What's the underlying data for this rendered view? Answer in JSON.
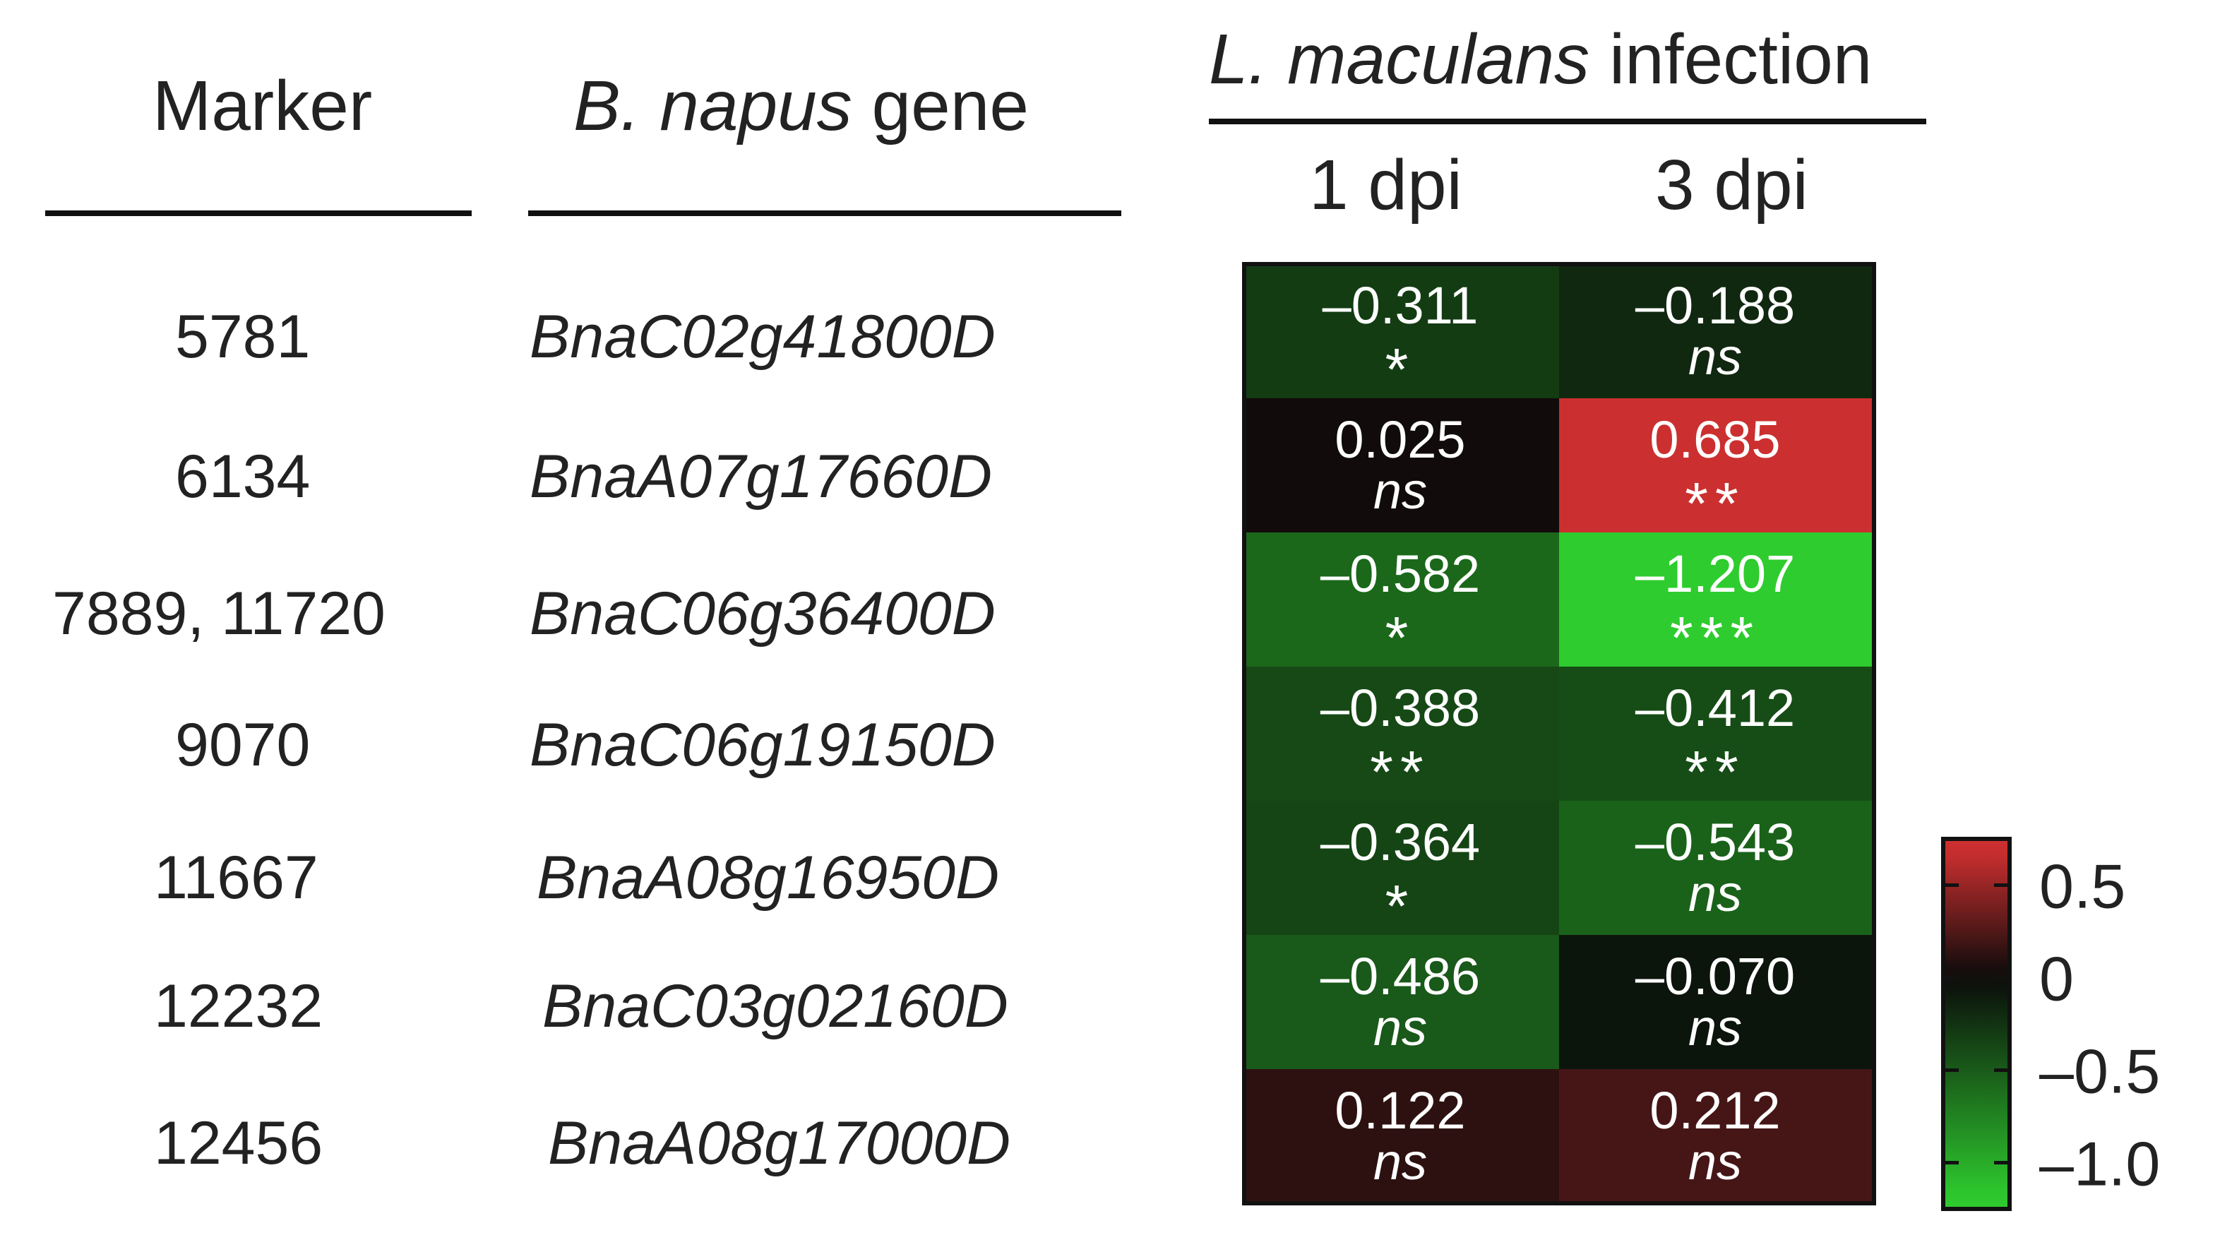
{
  "headers": {
    "marker": "Marker",
    "gene_italic": "B. napus",
    "gene_rest": " gene",
    "infection_italic": "L. maculans",
    "infection_rest": " infection"
  },
  "rows": [
    {
      "marker": "5781",
      "gene": "BnaC02g41800D"
    },
    {
      "marker": "6134",
      "gene": "BnaA07g17660D"
    },
    {
      "marker": "7889, 11720",
      "gene": "BnaC06g36400D"
    },
    {
      "marker": "9070",
      "gene": "BnaC06g19150D"
    },
    {
      "marker": "11667",
      "gene": "BnaA08g16950D"
    },
    {
      "marker": "12232",
      "gene": "BnaC03g02160D"
    },
    {
      "marker": "12456",
      "gene": "BnaA08g17000D"
    }
  ],
  "chart_data": {
    "type": "heatmap",
    "columns": [
      "1 dpi",
      "3 dpi"
    ],
    "cells": [
      [
        {
          "value": -0.311,
          "label": "–0.311",
          "sig": "*"
        },
        {
          "value": -0.188,
          "label": "–0.188",
          "sig": "ns"
        }
      ],
      [
        {
          "value": 0.025,
          "label": "0.025",
          "sig": "ns"
        },
        {
          "value": 0.685,
          "label": "0.685",
          "sig": "**"
        }
      ],
      [
        {
          "value": -0.582,
          "label": "–0.582",
          "sig": "*"
        },
        {
          "value": -1.207,
          "label": "–1.207",
          "sig": "***"
        }
      ],
      [
        {
          "value": -0.388,
          "label": "–0.388",
          "sig": "**"
        },
        {
          "value": -0.412,
          "label": "–0.412",
          "sig": "**"
        }
      ],
      [
        {
          "value": -0.364,
          "label": "–0.364",
          "sig": "*"
        },
        {
          "value": -0.543,
          "label": "–0.543",
          "sig": "ns"
        }
      ],
      [
        {
          "value": -0.486,
          "label": "–0.486",
          "sig": "ns"
        },
        {
          "value": -0.07,
          "label": "–0.070",
          "sig": "ns"
        }
      ],
      [
        {
          "value": 0.122,
          "label": "0.122",
          "sig": "ns"
        },
        {
          "value": 0.212,
          "label": "0.212",
          "sig": "ns"
        }
      ]
    ],
    "colorbar": {
      "range": [
        -1.25,
        0.75
      ],
      "ticks": [
        {
          "value": 0.5,
          "label": "0.5"
        },
        {
          "value": 0,
          "label": "0"
        },
        {
          "value": -0.5,
          "label": "–0.5"
        },
        {
          "value": -1.0,
          "label": "–1.0"
        }
      ]
    },
    "colors": {
      "positive": "#d03030",
      "zero": "#0a0a0a",
      "negative": "#2ecc2e"
    }
  }
}
